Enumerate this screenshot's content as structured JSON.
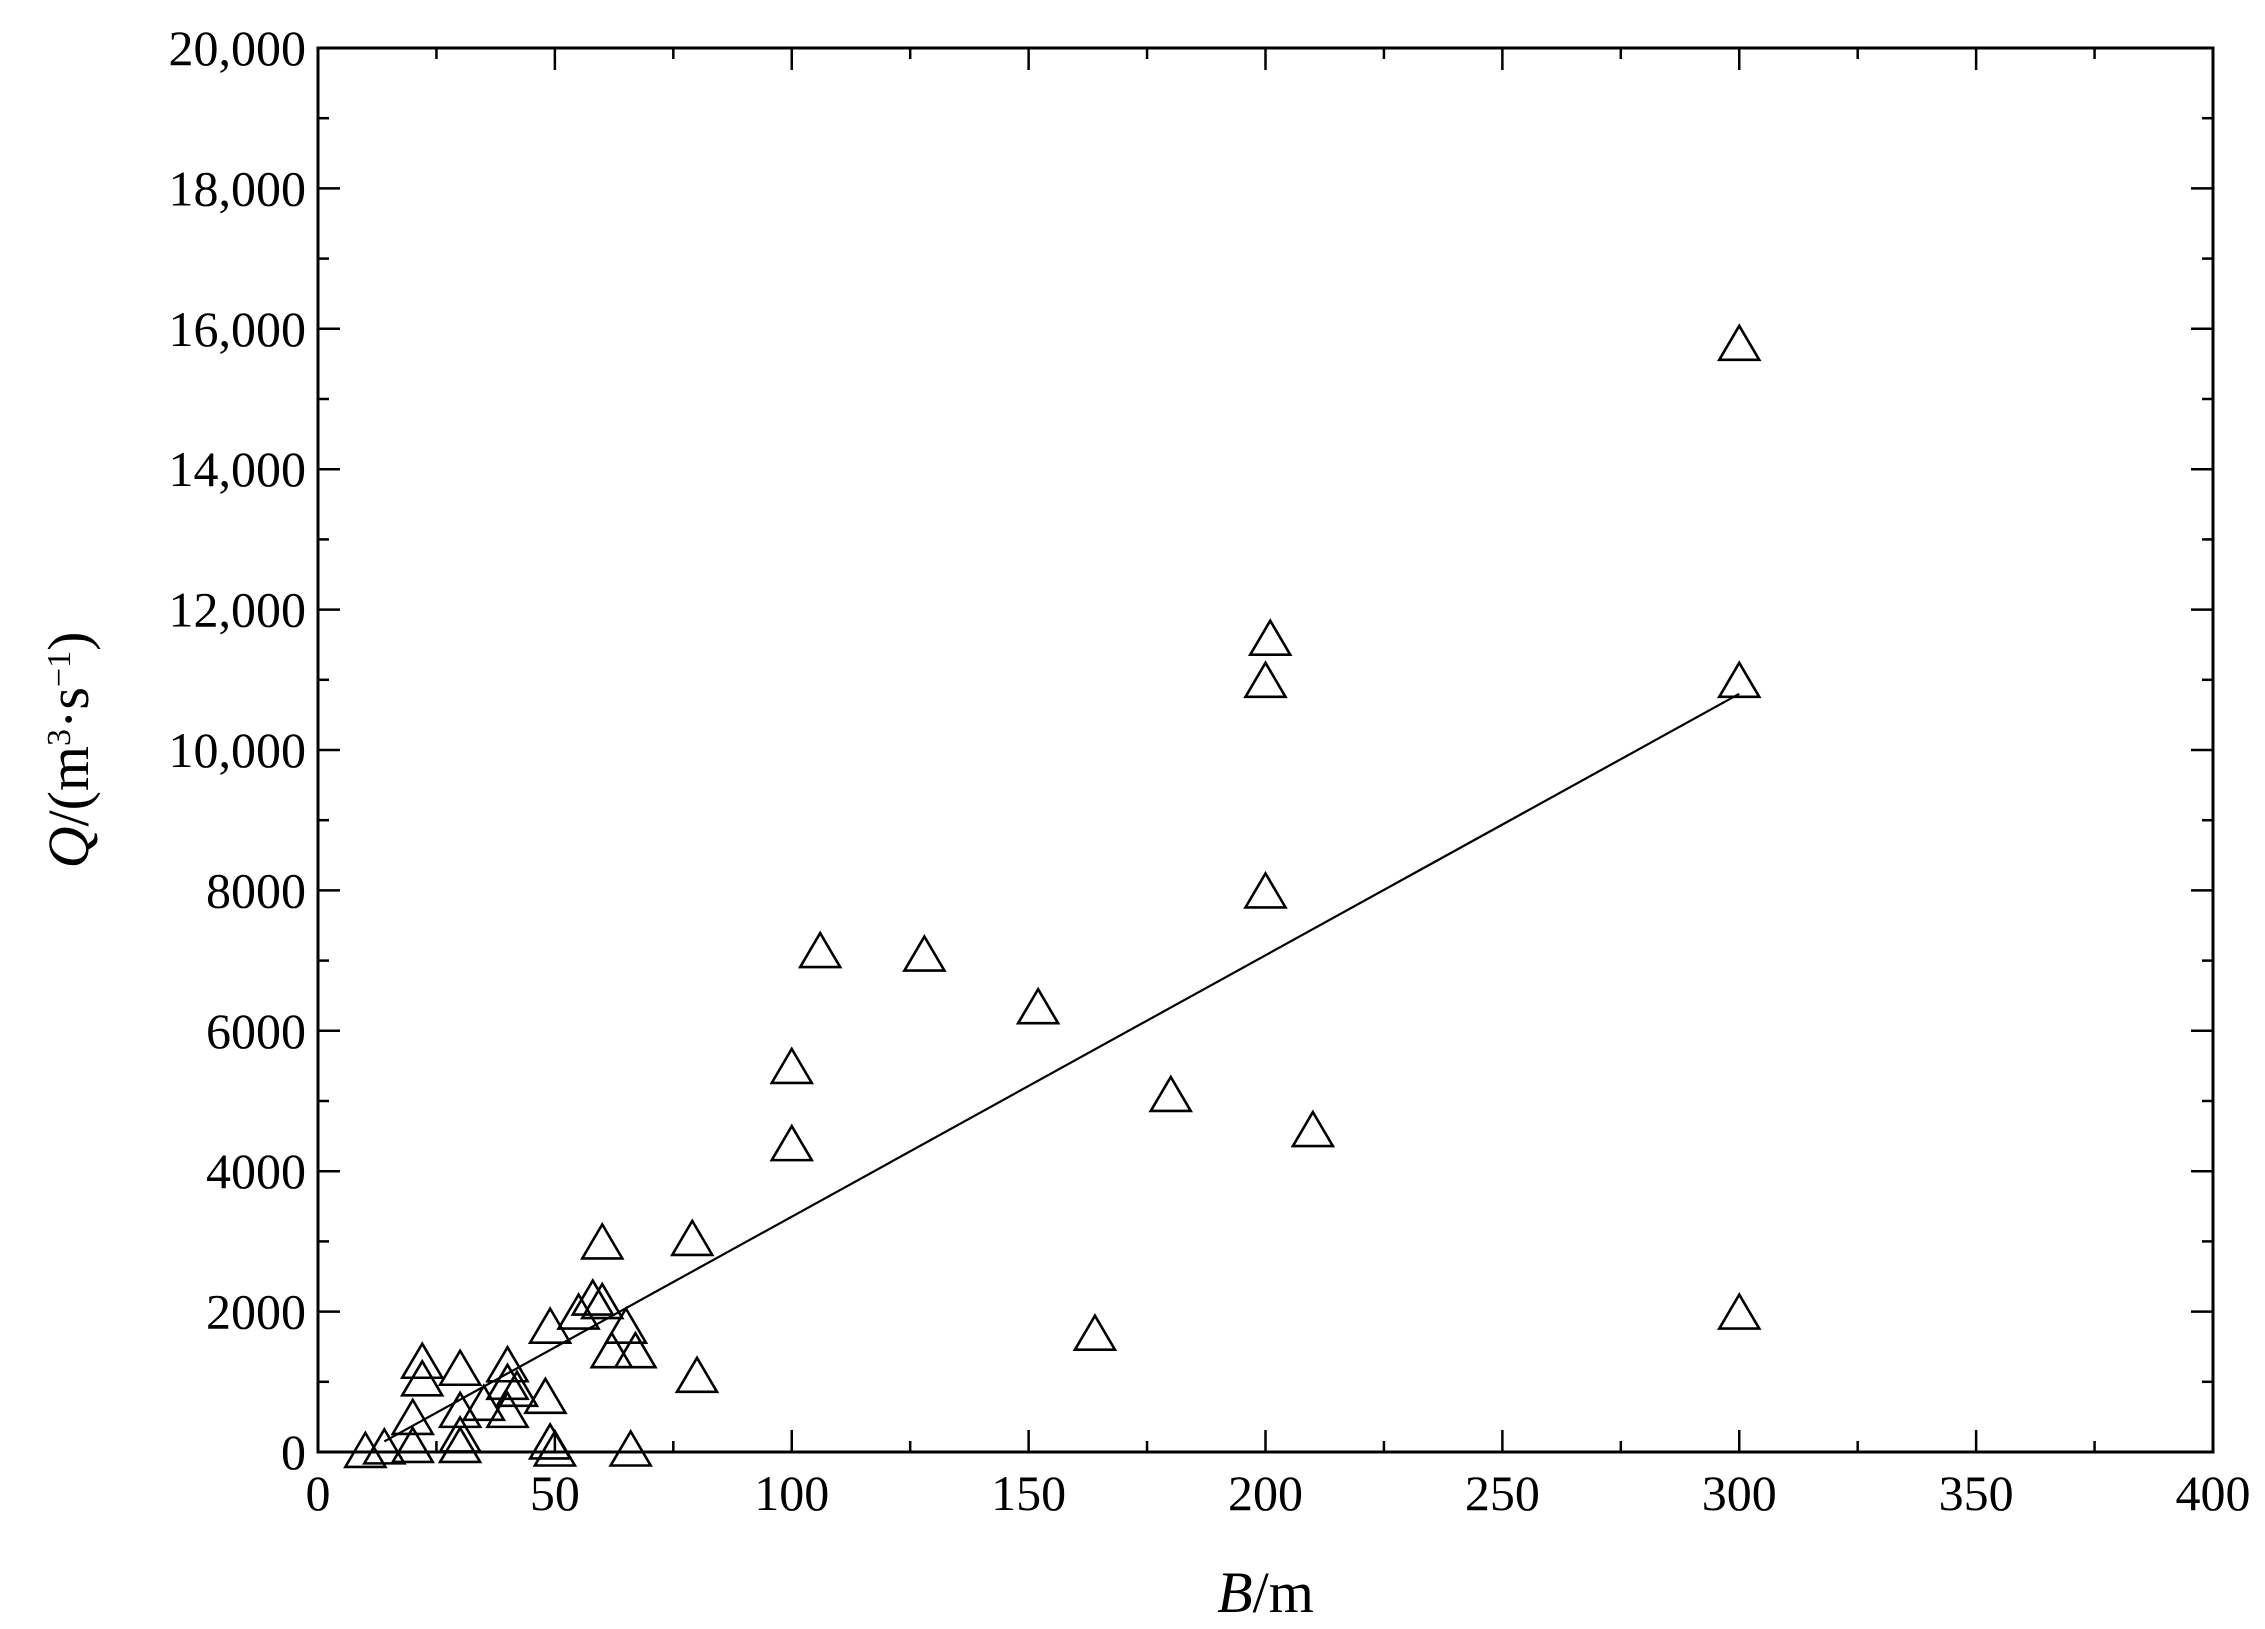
{
  "chart_data": {
    "type": "scatter",
    "xlabel": {
      "symbol": "B",
      "unit": "/m"
    },
    "ylabel": {
      "symbol": "Q",
      "unit_open": "/(m",
      "sup1": "3",
      "mid": "·s",
      "sup2": "−1",
      "unit_close": ")"
    },
    "xlim": [
      0,
      400
    ],
    "ylim": [
      0,
      20000
    ],
    "x_ticks": [
      0,
      50,
      100,
      150,
      200,
      250,
      300,
      350,
      400
    ],
    "x_tick_labels": [
      "0",
      "50",
      "100",
      "150",
      "200",
      "250",
      "300",
      "350",
      "400"
    ],
    "y_ticks": [
      0,
      2000,
      4000,
      6000,
      8000,
      10000,
      12000,
      14000,
      16000,
      18000,
      20000
    ],
    "y_tick_labels": [
      "0",
      "2000",
      "4000",
      "6000",
      "8000",
      "10,000",
      "12,000",
      "14,000",
      "16,000",
      "18,000",
      "20,000"
    ],
    "grid": false,
    "legend": null,
    "marker": "open-triangle",
    "points": [
      {
        "x": 10,
        "y": 30
      },
      {
        "x": 14,
        "y": 80
      },
      {
        "x": 20,
        "y": 500
      },
      {
        "x": 20,
        "y": 100
      },
      {
        "x": 22,
        "y": 1050
      },
      {
        "x": 22,
        "y": 1300
      },
      {
        "x": 30,
        "y": 1200
      },
      {
        "x": 30,
        "y": 250
      },
      {
        "x": 30,
        "y": 100
      },
      {
        "x": 30,
        "y": 600
      },
      {
        "x": 35,
        "y": 700
      },
      {
        "x": 40,
        "y": 600
      },
      {
        "x": 40,
        "y": 1250
      },
      {
        "x": 40,
        "y": 1000
      },
      {
        "x": 42,
        "y": 900
      },
      {
        "x": 48,
        "y": 800
      },
      {
        "x": 49,
        "y": 1800
      },
      {
        "x": 49,
        "y": 150
      },
      {
        "x": 50,
        "y": 50
      },
      {
        "x": 55,
        "y": 2000
      },
      {
        "x": 58,
        "y": 2200
      },
      {
        "x": 60,
        "y": 2150
      },
      {
        "x": 60,
        "y": 3000
      },
      {
        "x": 62,
        "y": 1450
      },
      {
        "x": 65,
        "y": 1800
      },
      {
        "x": 66,
        "y": 50
      },
      {
        "x": 67,
        "y": 1450
      },
      {
        "x": 79,
        "y": 3050
      },
      {
        "x": 80,
        "y": 1100
      },
      {
        "x": 100,
        "y": 5500
      },
      {
        "x": 100,
        "y": 4400
      },
      {
        "x": 106,
        "y": 7150
      },
      {
        "x": 128,
        "y": 7100
      },
      {
        "x": 152,
        "y": 6350
      },
      {
        "x": 164,
        "y": 1700
      },
      {
        "x": 180,
        "y": 5100
      },
      {
        "x": 200,
        "y": 11000
      },
      {
        "x": 200,
        "y": 8000
      },
      {
        "x": 201,
        "y": 11600
      },
      {
        "x": 210,
        "y": 4600
      },
      {
        "x": 300,
        "y": 15800
      },
      {
        "x": 300,
        "y": 11000
      },
      {
        "x": 300,
        "y": 2000
      }
    ],
    "fit_line": {
      "x": [
        14,
        300
      ],
      "y": [
        150,
        10800
      ]
    }
  }
}
